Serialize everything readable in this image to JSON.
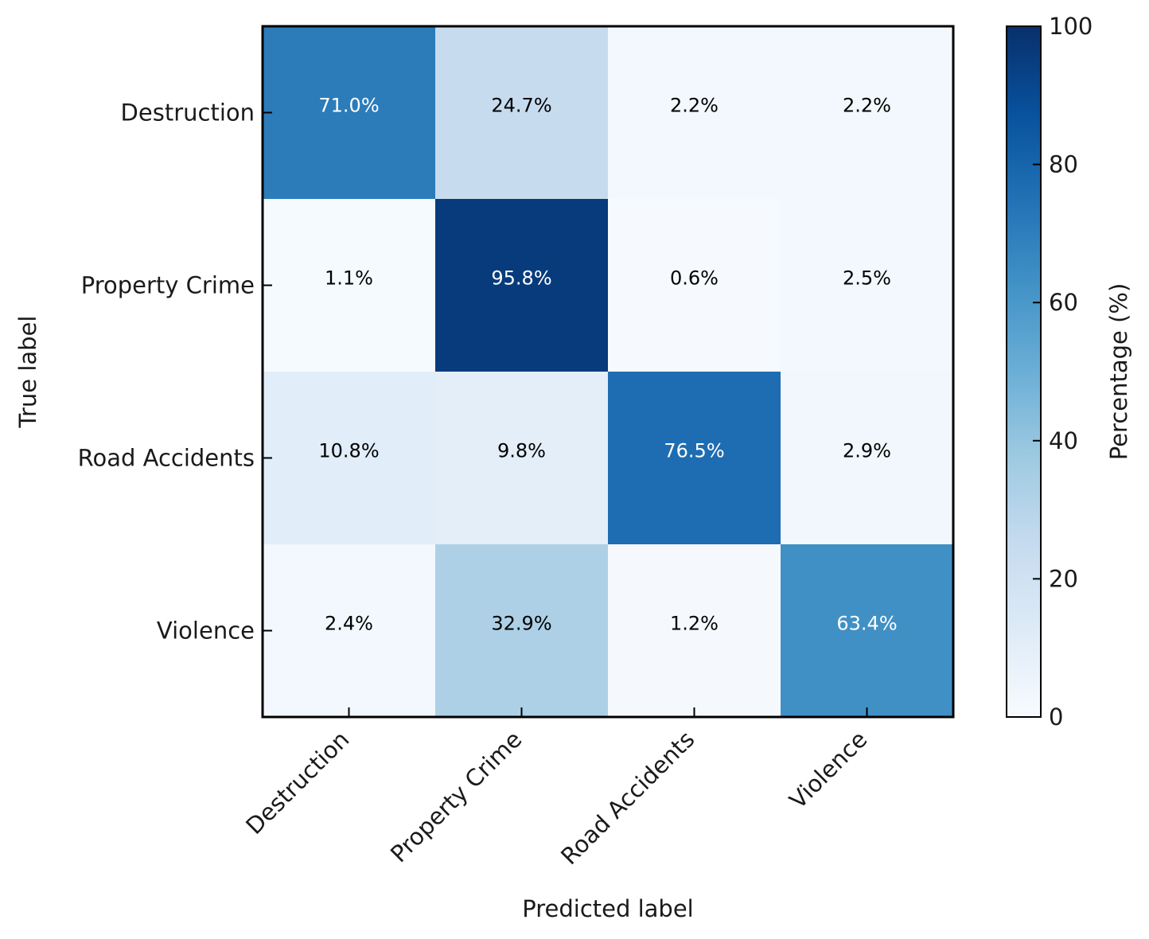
{
  "chart_data": {
    "type": "heatmap",
    "title": "",
    "xlabel": "Predicted label",
    "ylabel": "True label",
    "x_categories": [
      "Destruction",
      "Property Crime",
      "Road Accidents",
      "Violence"
    ],
    "y_categories": [
      "Destruction",
      "Property Crime",
      "Road Accidents",
      "Violence"
    ],
    "values": [
      [
        71.0,
        24.7,
        2.2,
        2.2
      ],
      [
        1.1,
        95.8,
        0.6,
        2.5
      ],
      [
        10.8,
        9.8,
        76.5,
        2.9
      ],
      [
        2.4,
        32.9,
        1.2,
        63.4
      ]
    ],
    "cell_labels": [
      [
        "71.0%",
        "24.7%",
        "2.2%",
        "2.2%"
      ],
      [
        "1.1%",
        "95.8%",
        "0.6%",
        "2.5%"
      ],
      [
        "10.8%",
        "9.8%",
        "76.5%",
        "2.9%"
      ],
      [
        "2.4%",
        "32.9%",
        "1.2%",
        "63.4%"
      ]
    ],
    "colorbar": {
      "label": "Percentage (%)",
      "range": [
        0,
        100
      ],
      "ticks": [
        0,
        20,
        40,
        60,
        80,
        100
      ],
      "colormap": "Blues"
    }
  }
}
